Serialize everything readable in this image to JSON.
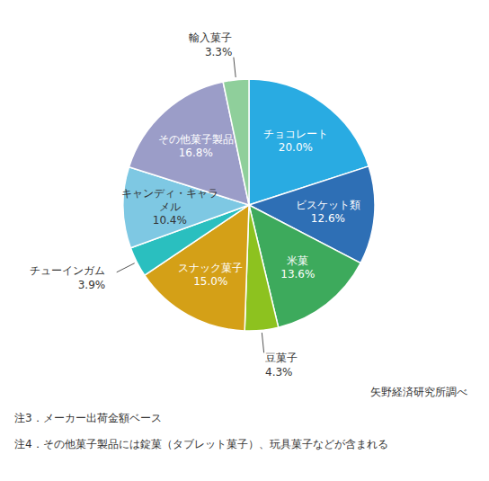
{
  "chart_data": {
    "type": "pie",
    "categories": [
      "チョコレート",
      "ビスケット類",
      "米菓",
      "豆菓子",
      "スナック菓子",
      "チューインガム",
      "キャンディ・キャラメル",
      "その他菓子製品",
      "輸入菓子"
    ],
    "values": [
      20.0,
      12.6,
      13.6,
      4.3,
      15.0,
      3.9,
      10.4,
      16.8,
      3.3
    ],
    "value_labels": [
      "20.0%",
      "12.6%",
      "13.6%",
      "4.3%",
      "15.0%",
      "3.9%",
      "10.4%",
      "16.8%",
      "3.3%"
    ],
    "colors": [
      "#29ABE2",
      "#2E6FB5",
      "#3DAA5C",
      "#8DC21F",
      "#D4A017",
      "#2ABFBF",
      "#7EC8E3",
      "#9B9DC8",
      "#8FCF9B"
    ],
    "data_labels": true,
    "annotations": [
      "矢野経済研究所調べ",
      "注3．メーカー出荷金額ベース",
      "注4．その他菓子製品には錠菓（タブレット菓子）、玩具菓子などが含まれる"
    ]
  }
}
